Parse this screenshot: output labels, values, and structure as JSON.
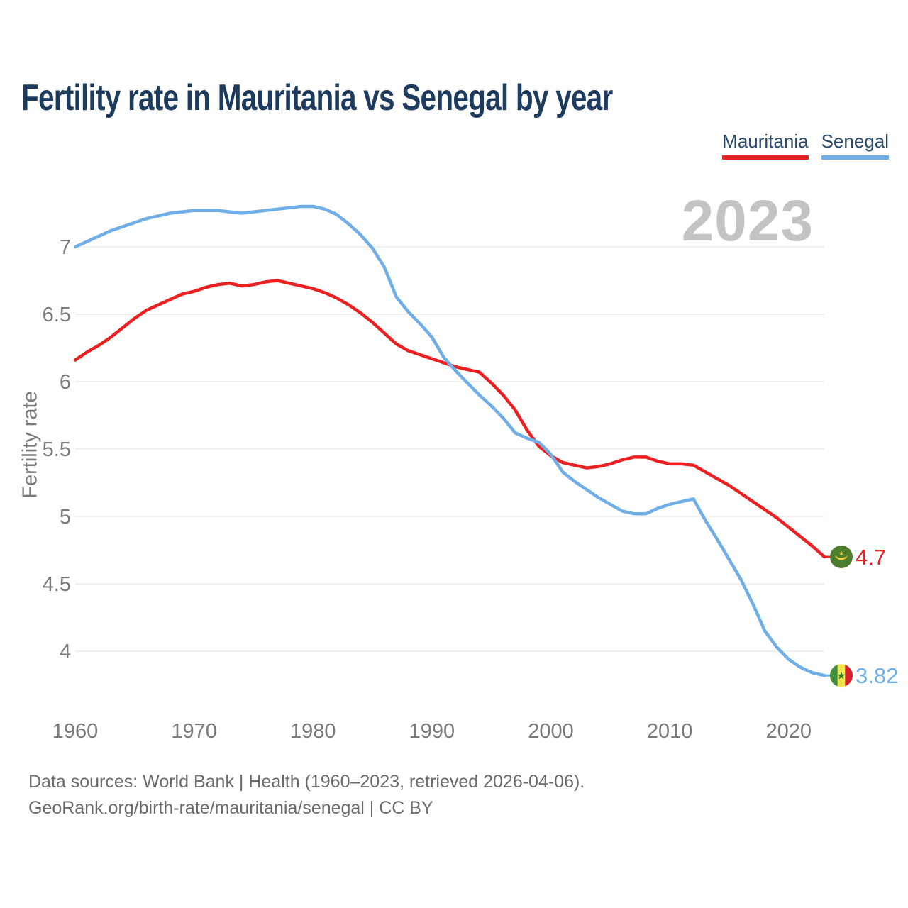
{
  "page": {
    "title": "Fertility rate in Mauritania vs Senegal by year",
    "watermark": "2023",
    "footer_line1": "Data sources: World Bank | Health (1960–2023, retrieved 2026-04-06).",
    "footer_line2": "GeoRank.org/birth-rate/mauritania/senegal | CC BY"
  },
  "legend": {
    "items": [
      {
        "label": "Mauritania",
        "color": "#ec2020"
      },
      {
        "label": "Senegal",
        "color": "#6faee6"
      }
    ]
  },
  "colors": {
    "title": "#1d3b5f",
    "legend_text": "#2b4a6b",
    "axis_text": "#7a7a7a",
    "grid": "#ebebeb",
    "watermark": "#c3c3c3",
    "footer": "#6b6b6b"
  },
  "chart_data": {
    "type": "line",
    "title": "Fertility rate in Mauritania vs Senegal by year",
    "xlabel": "",
    "ylabel": "Fertility rate",
    "grid": "horizontal",
    "legend_position": "top-right",
    "xticks": [
      1960,
      1970,
      1980,
      1990,
      2000,
      2010,
      2020
    ],
    "yticks": [
      7,
      6.5,
      6,
      5.5,
      5,
      4.5,
      4
    ],
    "xlim": [
      1960,
      2023
    ],
    "ylim": [
      3.7,
      7.45
    ],
    "years": [
      1960,
      1961,
      1962,
      1963,
      1964,
      1965,
      1966,
      1967,
      1968,
      1969,
      1970,
      1971,
      1972,
      1973,
      1974,
      1975,
      1976,
      1977,
      1978,
      1979,
      1980,
      1981,
      1982,
      1983,
      1984,
      1985,
      1986,
      1987,
      1988,
      1989,
      1990,
      1991,
      1992,
      1993,
      1994,
      1995,
      1996,
      1997,
      1998,
      1999,
      2000,
      2001,
      2002,
      2003,
      2004,
      2005,
      2006,
      2007,
      2008,
      2009,
      2010,
      2011,
      2012,
      2013,
      2014,
      2015,
      2016,
      2017,
      2018,
      2019,
      2020,
      2021,
      2022,
      2023
    ],
    "series": [
      {
        "name": "Mauritania",
        "color": "#ec2020",
        "end_label": "4.7",
        "flag": "mauritania-flag-icon",
        "flag_colors": {
          "bg": "#4d7e2e",
          "symbol": "#f2cf3e"
        },
        "values": [
          6.16,
          6.22,
          6.27,
          6.33,
          6.4,
          6.47,
          6.53,
          6.57,
          6.61,
          6.65,
          6.67,
          6.7,
          6.72,
          6.73,
          6.71,
          6.72,
          6.74,
          6.75,
          6.73,
          6.71,
          6.69,
          6.66,
          6.62,
          6.57,
          6.51,
          6.44,
          6.36,
          6.28,
          6.23,
          6.2,
          6.17,
          6.14,
          6.11,
          6.09,
          6.07,
          5.99,
          5.9,
          5.79,
          5.64,
          5.52,
          5.45,
          5.4,
          5.38,
          5.36,
          5.37,
          5.39,
          5.42,
          5.44,
          5.44,
          5.41,
          5.39,
          5.39,
          5.38,
          5.33,
          5.28,
          5.23,
          5.17,
          5.11,
          5.05,
          4.99,
          4.92,
          4.85,
          4.78,
          4.7
        ]
      },
      {
        "name": "Senegal",
        "color": "#6faee6",
        "end_label": "3.82",
        "flag": "senegal-flag-icon",
        "flag_colors": {
          "green": "#3f9140",
          "yellow": "#f8e44a",
          "red": "#d6212e",
          "star": "#2e7d32"
        },
        "values": [
          7.0,
          7.04,
          7.08,
          7.12,
          7.15,
          7.18,
          7.21,
          7.23,
          7.25,
          7.26,
          7.27,
          7.27,
          7.27,
          7.26,
          7.25,
          7.26,
          7.27,
          7.28,
          7.29,
          7.3,
          7.3,
          7.28,
          7.24,
          7.17,
          7.09,
          6.99,
          6.85,
          6.63,
          6.52,
          6.43,
          6.33,
          6.18,
          6.08,
          5.99,
          5.9,
          5.82,
          5.73,
          5.62,
          5.58,
          5.55,
          5.46,
          5.33,
          5.26,
          5.2,
          5.14,
          5.09,
          5.04,
          5.02,
          5.02,
          5.06,
          5.09,
          5.11,
          5.13,
          4.97,
          4.83,
          4.68,
          4.53,
          4.35,
          4.15,
          4.03,
          3.94,
          3.88,
          3.84,
          3.82
        ]
      }
    ]
  }
}
